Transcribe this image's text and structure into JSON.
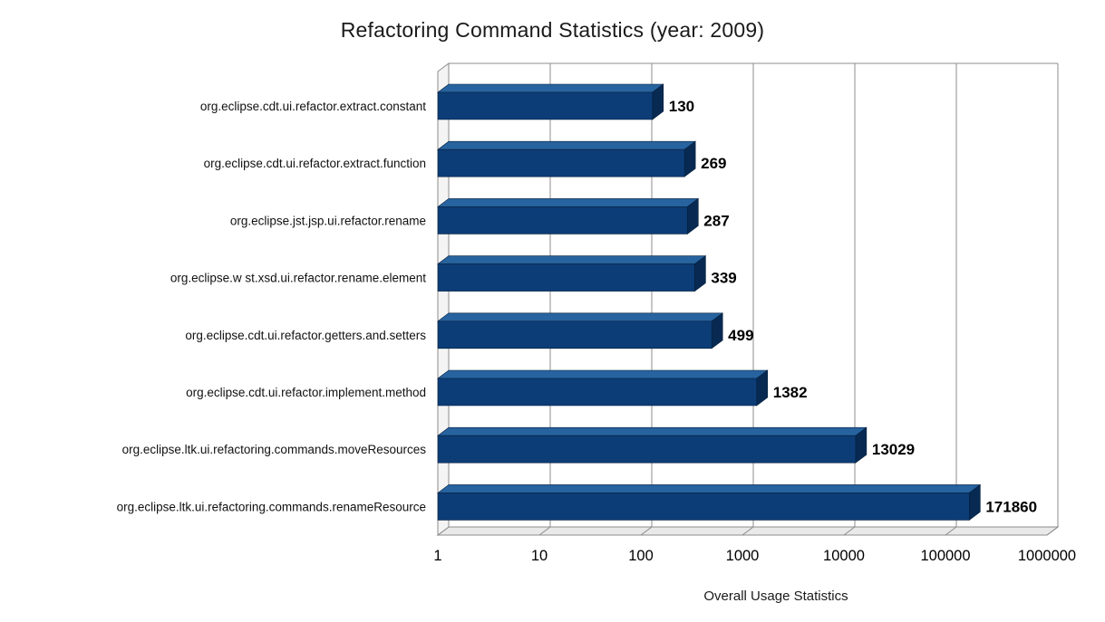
{
  "chart_data": {
    "type": "bar",
    "orientation": "horizontal",
    "title": "Refactoring Command Statistics (year: 2009)",
    "xlabel": "Overall Usage Statistics",
    "x_scale": "log",
    "x_range": [
      1,
      1000000
    ],
    "x_ticks": [
      "1",
      "10",
      "100",
      "1000",
      "10000",
      "100000",
      "1000000"
    ],
    "grid": true,
    "legend": "none",
    "categories": [
      "org.eclipse.cdt.ui.refactor.extract.constant",
      "org.eclipse.cdt.ui.refactor.extract.function",
      "org.eclipse.jst.jsp.ui.refactor.rename",
      "org.eclipse.w st.xsd.ui.refactor.rename.element",
      "org.eclipse.cdt.ui.refactor.getters.and.setters",
      "org.eclipse.cdt.ui.refactor.implement.method",
      "org.eclipse.ltk.ui.refactoring.commands.moveResources",
      "org.eclipse.ltk.ui.refactoring.commands.renameResource"
    ],
    "values": [
      130,
      269,
      287,
      339,
      499,
      1382,
      13029,
      171860
    ],
    "value_labels": [
      "130",
      "269",
      "287",
      "339",
      "499",
      "1382",
      "13029",
      "171860"
    ],
    "colors": {
      "bar_front": "#0d3d77",
      "bar_top": "#27639f",
      "bar_side": "#082a52",
      "bar_outline": "#041f3d",
      "gridline": "#8c8c8c",
      "wall_fill": "#f4f4f4",
      "floor_fill": "#e9e9e9",
      "axis_text": "#000000"
    }
  }
}
